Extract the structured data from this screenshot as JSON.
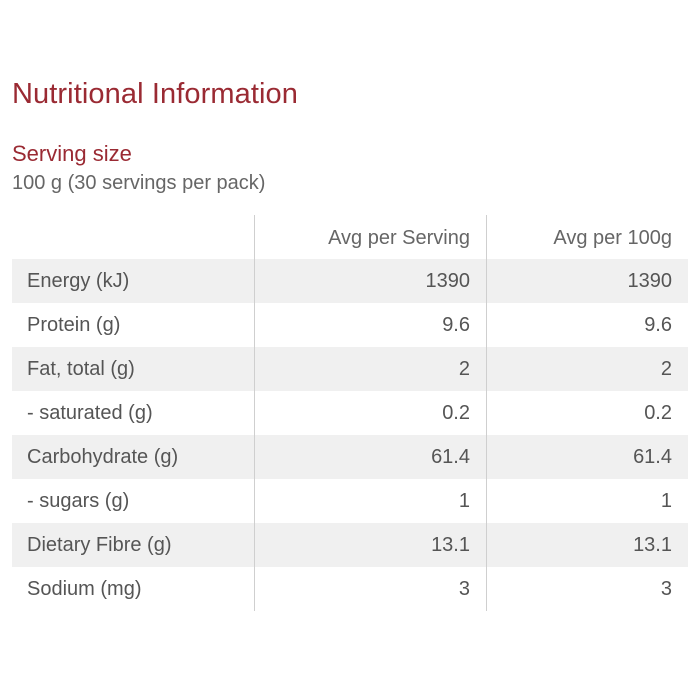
{
  "title": "Nutritional Information",
  "serving": {
    "label": "Serving size",
    "value": "100 g (30 servings per pack)"
  },
  "table": {
    "headers": [
      "",
      "Avg per Serving",
      "Avg per 100g"
    ],
    "rows": [
      [
        "Energy (kJ)",
        "1390",
        "1390"
      ],
      [
        "Protein (g)",
        "9.6",
        "9.6"
      ],
      [
        "Fat, total (g)",
        "2",
        "2"
      ],
      [
        "- saturated (g)",
        "0.2",
        "0.2"
      ],
      [
        "Carbohydrate (g)",
        "61.4",
        "61.4"
      ],
      [
        "- sugars (g)",
        "1",
        "1"
      ],
      [
        "Dietary Fibre (g)",
        "13.1",
        "13.1"
      ],
      [
        "Sodium (mg)",
        "3",
        "3"
      ]
    ]
  },
  "colors": {
    "accent": "#9a2a33",
    "row_shade": "#f0f0f0",
    "text": "#555555"
  }
}
